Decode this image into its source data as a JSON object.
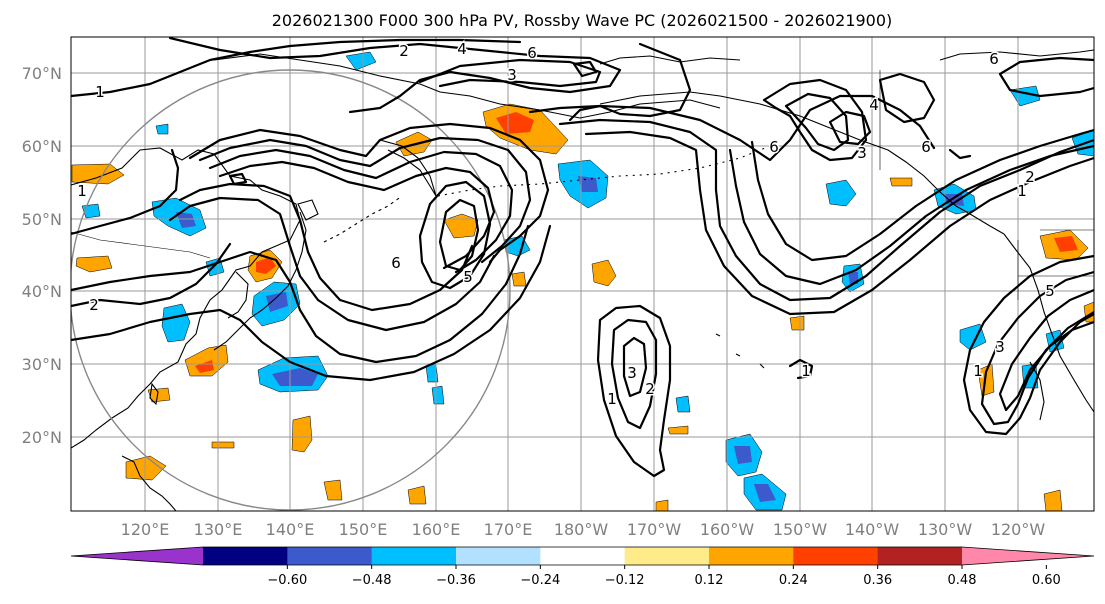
{
  "title": "2026021300 F000 300 hPa PV, Rossby Wave PC (2026021500 - 2026021900)",
  "lat_labels": [
    "70°N",
    "60°N",
    "50°N",
    "40°N",
    "30°N",
    "20°N"
  ],
  "lon_labels": [
    "120°E",
    "130°E",
    "140°E",
    "150°E",
    "160°E",
    "170°E",
    "180°W",
    "170°W",
    "160°W",
    "150°W",
    "140°W",
    "130°W",
    "120°W"
  ],
  "colorbar": {
    "ticks": [
      "−0.60",
      "−0.48",
      "−0.36",
      "−0.24",
      "−0.12",
      "0.12",
      "0.24",
      "0.36",
      "0.48",
      "0.60"
    ],
    "colors": [
      "#9933cc",
      "#000080",
      "#3c5acc",
      "#00bfff",
      "#b2e0ff",
      "#ffffff",
      "#ffeb8a",
      "#ffa500",
      "#ff4000",
      "#b22222",
      "#ff88aa"
    ]
  },
  "contour_labels": [
    "1",
    "2",
    "4",
    "6",
    "3",
    "5",
    "6",
    "4",
    "6",
    "3",
    "1",
    "5",
    "3",
    "1",
    "1",
    "2",
    "3",
    "1",
    "2",
    "6",
    "6",
    "1",
    "2"
  ],
  "map_data": {
    "region": "North Pacific",
    "lon_range": [
      "112°E",
      "115°W"
    ],
    "lat_range": [
      "10°N",
      "75°N"
    ],
    "contour_field": "300 hPa PV",
    "contour_levels": [
      1,
      2,
      3,
      4,
      5,
      6
    ],
    "shading_field": "Rossby Wave PC"
  }
}
